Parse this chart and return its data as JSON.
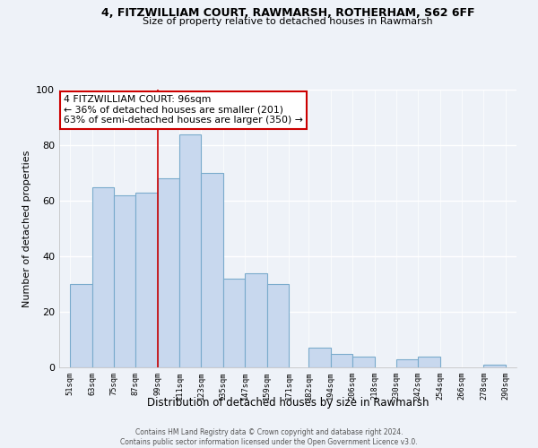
{
  "title": "4, FITZWILLIAM COURT, RAWMARSH, ROTHERHAM, S62 6FF",
  "subtitle": "Size of property relative to detached houses in Rawmarsh",
  "xlabel": "Distribution of detached houses by size in Rawmarsh",
  "ylabel": "Number of detached properties",
  "bar_color": "#c8d8ee",
  "bar_edge_color": "#7aabcc",
  "highlight_line_x": 99,
  "highlight_line_color": "#cc0000",
  "annotation_box_color": "#ffffff",
  "annotation_box_edge": "#cc0000",
  "bin_edges": [
    51,
    63,
    75,
    87,
    99,
    111,
    123,
    135,
    147,
    159,
    171,
    182,
    194,
    206,
    218,
    230,
    242,
    254,
    266,
    278,
    290
  ],
  "counts": [
    30,
    65,
    62,
    63,
    68,
    84,
    70,
    32,
    34,
    30,
    0,
    7,
    5,
    4,
    0,
    3,
    4,
    0,
    0,
    1
  ],
  "tick_labels": [
    "51sqm",
    "63sqm",
    "75sqm",
    "87sqm",
    "99sqm",
    "111sqm",
    "123sqm",
    "135sqm",
    "147sqm",
    "159sqm",
    "171sqm",
    "182sqm",
    "194sqm",
    "206sqm",
    "218sqm",
    "230sqm",
    "242sqm",
    "254sqm",
    "266sqm",
    "278sqm",
    "290sqm"
  ],
  "ylim": [
    0,
    100
  ],
  "yticks": [
    0,
    20,
    40,
    60,
    80,
    100
  ],
  "xlim_left": 45,
  "xlim_right": 296,
  "background_color": "#eef2f8",
  "grid_color": "#ffffff",
  "footer_line1": "Contains HM Land Registry data © Crown copyright and database right 2024.",
  "footer_line2": "Contains public sector information licensed under the Open Government Licence v3.0."
}
